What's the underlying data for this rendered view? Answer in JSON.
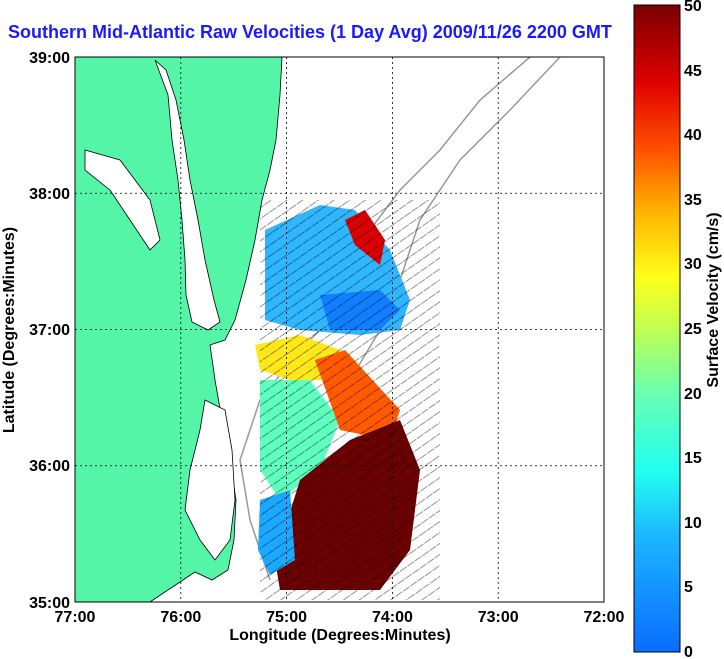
{
  "title": "Southern Mid-Atlantic Raw Velocities (1 Day Avg) 2009/11/26 2200 GMT",
  "map": {
    "xlabel": "Longitude (Degrees:Minutes)",
    "ylabel": "Latitude (Degrees:Minutes)",
    "x_ticks": [
      "77:00",
      "76:00",
      "75:00",
      "74:00",
      "73:00",
      "72:00"
    ],
    "y_ticks": [
      "39:00",
      "38:00",
      "37:00",
      "36:00",
      "35:00"
    ],
    "land_color": "#55f5a8",
    "grid": "dotted",
    "coastline_color": "#000000",
    "bathymetry_color": "#999999"
  },
  "colorbar": {
    "label": "Surface Velocity (cm/s)",
    "ticks": [
      "0",
      "5",
      "10",
      "15",
      "20",
      "25",
      "30",
      "35",
      "40",
      "45",
      "50"
    ],
    "range": [
      0,
      50
    ],
    "colormap": "jet"
  },
  "chart_data": {
    "type": "heatmap",
    "title": "Southern Mid-Atlantic Raw Velocities (1 Day Avg) 2009/11/26 2200 GMT",
    "xlabel": "Longitude (Degrees:Minutes)",
    "ylabel": "Latitude (Degrees:Minutes)",
    "xlim": [
      "77:00",
      "72:00"
    ],
    "ylim": [
      "35:00",
      "39:00"
    ],
    "value_label": "Surface Velocity (cm/s)",
    "value_range": [
      0,
      50
    ],
    "regions": [
      {
        "lon": -74.9,
        "lat": 37.6,
        "velocity": 12
      },
      {
        "lon": -74.2,
        "lat": 37.7,
        "velocity": 48
      },
      {
        "lon": -74.5,
        "lat": 37.1,
        "velocity": 7
      },
      {
        "lon": -75.0,
        "lat": 36.8,
        "velocity": 30
      },
      {
        "lon": -74.8,
        "lat": 36.2,
        "velocity": 10
      },
      {
        "lon": -74.4,
        "lat": 36.5,
        "velocity": 38
      },
      {
        "lon": -74.2,
        "lat": 35.6,
        "velocity": 50
      },
      {
        "lon": -75.0,
        "lat": 35.7,
        "velocity": 14
      }
    ]
  }
}
